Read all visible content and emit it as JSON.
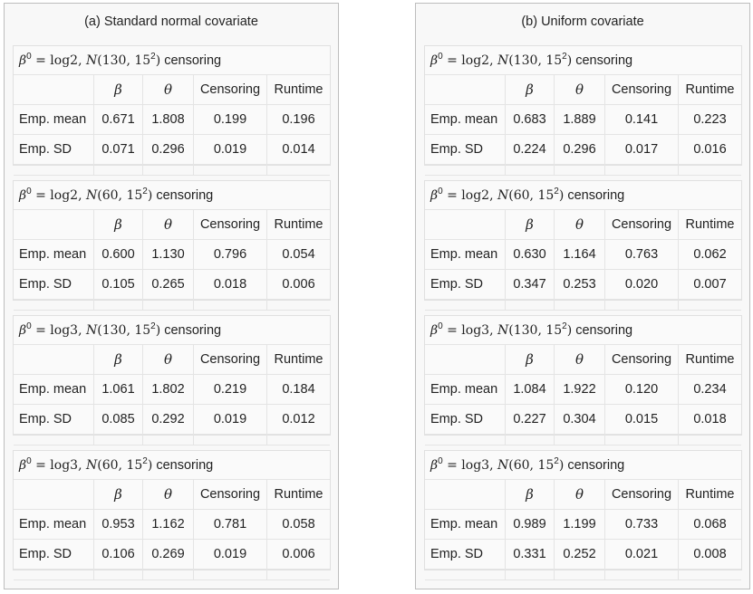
{
  "columns": [
    "β",
    "θ",
    "Censoring",
    "Runtime"
  ],
  "row_labels": [
    "Emp. mean",
    "Emp. SD"
  ],
  "panels": [
    {
      "title": "(a)   Standard normal covariate",
      "tables": [
        {
          "beta": "log2",
          "mean": "130",
          "sd": "15",
          "mean_row": [
            "0.671",
            "1.808",
            "0.199",
            "0.196"
          ],
          "sd_row": [
            "0.071",
            "0.296",
            "0.019",
            "0.014"
          ]
        },
        {
          "beta": "log2",
          "mean": "60",
          "sd": "15",
          "mean_row": [
            "0.600",
            "1.130",
            "0.796",
            "0.054"
          ],
          "sd_row": [
            "0.105",
            "0.265",
            "0.018",
            "0.006"
          ]
        },
        {
          "beta": "log3",
          "mean": "130",
          "sd": "15",
          "mean_row": [
            "1.061",
            "1.802",
            "0.219",
            "0.184"
          ],
          "sd_row": [
            "0.085",
            "0.292",
            "0.019",
            "0.012"
          ]
        },
        {
          "beta": "log3",
          "mean": "60",
          "sd": "15",
          "mean_row": [
            "0.953",
            "1.162",
            "0.781",
            "0.058"
          ],
          "sd_row": [
            "0.106",
            "0.269",
            "0.019",
            "0.006"
          ]
        }
      ]
    },
    {
      "title": "(b)   Uniform covariate",
      "tables": [
        {
          "beta": "log2",
          "mean": "130",
          "sd": "15",
          "mean_row": [
            "0.683",
            "1.889",
            "0.141",
            "0.223"
          ],
          "sd_row": [
            "0.224",
            "0.296",
            "0.017",
            "0.016"
          ]
        },
        {
          "beta": "log2",
          "mean": "60",
          "sd": "15",
          "mean_row": [
            "0.630",
            "1.164",
            "0.763",
            "0.062"
          ],
          "sd_row": [
            "0.347",
            "0.253",
            "0.020",
            "0.007"
          ]
        },
        {
          "beta": "log3",
          "mean": "130",
          "sd": "15",
          "mean_row": [
            "1.084",
            "1.922",
            "0.120",
            "0.234"
          ],
          "sd_row": [
            "0.227",
            "0.304",
            "0.015",
            "0.018"
          ]
        },
        {
          "beta": "log3",
          "mean": "60",
          "sd": "15",
          "mean_row": [
            "0.989",
            "1.199",
            "0.733",
            "0.068"
          ],
          "sd_row": [
            "0.331",
            "0.252",
            "0.021",
            "0.008"
          ]
        }
      ]
    }
  ]
}
